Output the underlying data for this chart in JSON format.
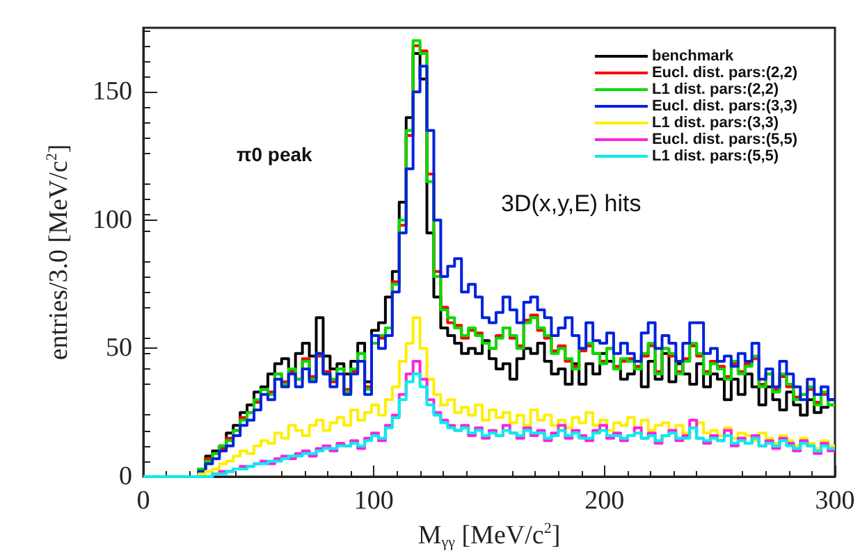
{
  "chart_data": {
    "type": "histogram",
    "xlabel": "M$_{γγ}$ [MeV/c$^{2}$]",
    "ylabel": "entries/3.0 [MeV/c$^{2}$]",
    "annotations": [
      "π0 peak",
      "3D(x,y,E) hits"
    ],
    "bins": [
      0,
      3,
      6,
      9,
      12,
      15,
      18,
      21,
      24,
      27,
      30,
      33,
      36,
      39,
      42,
      45,
      48,
      51,
      54,
      57,
      60,
      63,
      66,
      69,
      72,
      75,
      78,
      81,
      84,
      87,
      90,
      93,
      96,
      99,
      102,
      105,
      108,
      111,
      114,
      117,
      120,
      123,
      126,
      129,
      132,
      135,
      138,
      141,
      144,
      147,
      150,
      153,
      156,
      159,
      162,
      165,
      168,
      171,
      174,
      177,
      180,
      183,
      186,
      189,
      192,
      195,
      198,
      201,
      204,
      207,
      210,
      213,
      216,
      219,
      222,
      225,
      228,
      231,
      234,
      237,
      240,
      243,
      246,
      249,
      252,
      255,
      258,
      261,
      264,
      267,
      270,
      273,
      276,
      279,
      282,
      285,
      288,
      291,
      294,
      297,
      300
    ],
    "xlim": [
      0,
      300
    ],
    "xticks": [
      0,
      100,
      200,
      300
    ],
    "ylim": [
      0,
      175
    ],
    "yticks": [
      0,
      50,
      100,
      150
    ],
    "grid": false,
    "legend": "top right",
    "line_style": "solid",
    "marker": "none",
    "series": [
      {
        "name": "benchmark",
        "color": "#000000",
        "values": [
          0,
          0,
          0,
          0,
          0,
          0,
          0,
          0,
          3,
          8,
          10,
          12,
          17,
          20,
          25,
          28,
          33,
          35,
          40,
          44,
          46,
          42,
          48,
          52,
          47,
          62,
          47,
          42,
          44,
          40,
          45,
          52,
          37,
          57,
          60,
          70,
          80,
          107,
          140,
          165,
          155,
          95,
          70,
          58,
          55,
          52,
          48,
          50,
          48,
          53,
          46,
          42,
          44,
          38,
          46,
          50,
          48,
          52,
          45,
          40,
          42,
          36,
          44,
          36,
          44,
          40,
          48,
          45,
          42,
          38,
          40,
          42,
          35,
          45,
          38,
          48,
          37,
          44,
          40,
          36,
          44,
          35,
          40,
          38,
          30,
          38,
          32,
          40,
          35,
          28,
          35,
          30,
          26,
          33,
          28,
          24,
          30,
          25,
          27,
          30
        ]
      },
      {
        "name": "Eucl. dist. pars:(2,2)",
        "color": "#ff0000",
        "values": [
          0,
          0,
          0,
          0,
          0,
          0,
          0,
          0,
          3,
          7,
          9,
          11,
          15,
          18,
          23,
          25,
          29,
          34,
          33,
          40,
          37,
          41,
          38,
          46,
          39,
          47,
          41,
          37,
          42,
          34,
          41,
          48,
          35,
          52,
          54,
          58,
          76,
          98,
          133,
          168,
          166,
          118,
          80,
          66,
          60,
          59,
          54,
          57,
          56,
          52,
          50,
          55,
          58,
          54,
          51,
          61,
          63,
          57,
          54,
          49,
          51,
          45,
          43,
          49,
          51,
          48,
          45,
          50,
          43,
          45,
          46,
          43,
          47,
          51,
          41,
          50,
          47,
          41,
          46,
          51,
          47,
          41,
          45,
          43,
          39,
          44,
          41,
          44,
          46,
          36,
          40,
          34,
          39,
          35,
          31,
          32,
          34,
          29,
          32,
          28
        ]
      },
      {
        "name": "L1 dist. pars:(2,2)",
        "color": "#00dd00",
        "values": [
          0,
          0,
          0,
          0,
          0,
          0,
          0,
          0,
          3,
          6,
          9,
          12,
          14,
          18,
          22,
          25,
          30,
          34,
          32,
          40,
          36,
          42,
          38,
          45,
          38,
          48,
          40,
          38,
          42,
          33,
          42,
          48,
          34,
          52,
          55,
          58,
          75,
          100,
          135,
          170,
          165,
          115,
          78,
          65,
          62,
          58,
          55,
          58,
          55,
          52,
          50,
          54,
          58,
          55,
          50,
          60,
          62,
          58,
          55,
          48,
          50,
          46,
          42,
          50,
          52,
          48,
          44,
          50,
          42,
          46,
          45,
          42,
          48,
          52,
          40,
          50,
          48,
          40,
          45,
          52,
          48,
          40,
          44,
          42,
          38,
          45,
          40,
          43,
          47,
          35,
          40,
          33,
          40,
          36,
          30,
          32,
          35,
          28,
          33,
          28
        ]
      },
      {
        "name": "Eucl. dist. pars:(3,3)",
        "color": "#0022dd",
        "values": [
          0,
          0,
          0,
          0,
          0,
          0,
          0,
          0,
          2,
          5,
          7,
          10,
          12,
          16,
          20,
          22,
          26,
          32,
          30,
          38,
          35,
          40,
          35,
          42,
          37,
          48,
          40,
          35,
          40,
          32,
          40,
          45,
          32,
          55,
          50,
          55,
          72,
          95,
          120,
          150,
          160,
          135,
          100,
          78,
          82,
          85,
          72,
          75,
          70,
          62,
          60,
          64,
          70,
          65,
          60,
          68,
          70,
          65,
          62,
          55,
          58,
          62,
          55,
          50,
          60,
          53,
          52,
          56,
          48,
          52,
          48,
          45,
          56,
          60,
          50,
          55,
          52,
          45,
          52,
          60,
          60,
          48,
          50,
          45,
          47,
          43,
          48,
          45,
          52,
          38,
          42,
          35,
          45,
          40,
          35,
          30,
          38,
          32,
          35,
          30
        ]
      },
      {
        "name": "L1 dist. pars:(3,3)",
        "color": "#ffee00",
        "values": [
          0,
          0,
          0,
          0,
          0,
          0,
          0,
          0,
          1,
          2,
          3,
          5,
          6,
          8,
          10,
          9,
          12,
          14,
          13,
          17,
          15,
          20,
          18,
          16,
          20,
          22,
          18,
          21,
          23,
          20,
          26,
          22,
          25,
          28,
          24,
          30,
          35,
          45,
          52,
          62,
          50,
          38,
          32,
          28,
          30,
          25,
          27,
          24,
          28,
          22,
          26,
          23,
          25,
          21,
          24,
          20,
          26,
          22,
          24,
          20,
          22,
          19,
          23,
          21,
          25,
          20,
          22,
          18,
          21,
          20,
          23,
          19,
          22,
          18,
          20,
          21,
          18,
          20,
          17,
          19,
          21,
          17,
          18,
          16,
          19,
          15,
          17,
          16,
          14,
          17,
          15,
          13,
          16,
          14,
          12,
          15,
          13,
          11,
          14,
          12
        ]
      },
      {
        "name": "Eucl. dist. pars:(5,5)",
        "color": "#ff22dd",
        "values": [
          0,
          0,
          0,
          0,
          0,
          0,
          0,
          0,
          0,
          0,
          1,
          2,
          2,
          3,
          4,
          4,
          5,
          6,
          5,
          7,
          8,
          7,
          9,
          10,
          8,
          11,
          12,
          10,
          13,
          12,
          14,
          11,
          15,
          17,
          14,
          20,
          24,
          32,
          40,
          45,
          38,
          30,
          25,
          22,
          20,
          18,
          20,
          16,
          19,
          15,
          18,
          16,
          20,
          17,
          15,
          19,
          16,
          18,
          14,
          17,
          20,
          15,
          18,
          16,
          14,
          18,
          20,
          15,
          17,
          14,
          16,
          19,
          15,
          17,
          13,
          16,
          18,
          14,
          16,
          22,
          15,
          13,
          16,
          14,
          18,
          12,
          15,
          13,
          16,
          12,
          14,
          11,
          15,
          13,
          10,
          14,
          12,
          9,
          13,
          10
        ]
      },
      {
        "name": "L1 dist. pars:(5,5)",
        "color": "#00eeee",
        "values": [
          0,
          0,
          0,
          0,
          0,
          0,
          0,
          0,
          0,
          0,
          1,
          1,
          2,
          3,
          3,
          4,
          5,
          5,
          6,
          6,
          7,
          8,
          8,
          9,
          9,
          10,
          11,
          11,
          12,
          12,
          13,
          12,
          14,
          16,
          15,
          19,
          23,
          30,
          37,
          40,
          35,
          28,
          24,
          21,
          19,
          18,
          19,
          17,
          18,
          16,
          17,
          16,
          18,
          17,
          16,
          18,
          17,
          17,
          15,
          16,
          18,
          16,
          17,
          15,
          15,
          17,
          18,
          16,
          16,
          15,
          16,
          17,
          15,
          16,
          14,
          16,
          17,
          15,
          15,
          19,
          15,
          14,
          15,
          14,
          16,
          13,
          14,
          13,
          15,
          12,
          13,
          12,
          14,
          12,
          11,
          13,
          12,
          10,
          12,
          11
        ]
      }
    ]
  }
}
